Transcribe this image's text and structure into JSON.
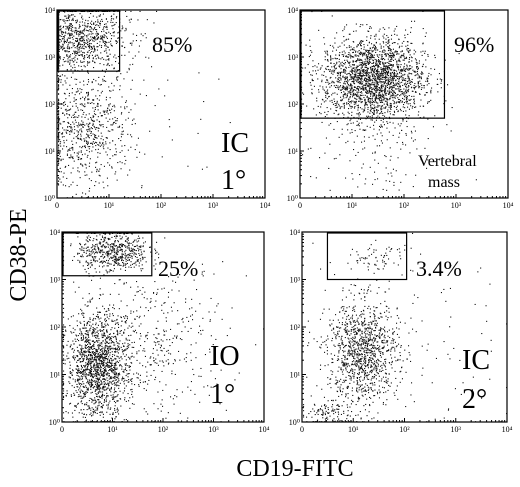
{
  "figure": {
    "ylabel": "CD38-PE",
    "xlabel": "CD19-FITC"
  },
  "chart_data": [
    {
      "type": "scatter",
      "panel": "top-left",
      "xscale": "log",
      "yscale": "log",
      "xlim": [
        1,
        10000
      ],
      "ylim": [
        1,
        10000
      ],
      "x_ticks": [
        "0",
        "10¹",
        "10²",
        "10³",
        "10⁴"
      ],
      "y_ticks": [
        "10⁰",
        "10¹",
        "10²",
        "10³",
        "10⁴"
      ],
      "gate": {
        "x": [
          1,
          16
        ],
        "y": [
          500,
          10000
        ]
      },
      "gate_percent": "85%",
      "annotation_lines": [
        "IC",
        "1°"
      ],
      "clusters": [
        {
          "cx": 2.5,
          "cy": 2500,
          "sx": 0.5,
          "sy": 0.35,
          "n": 900
        },
        {
          "cx": 3.5,
          "cy": 30,
          "sx": 0.45,
          "sy": 0.6,
          "n": 700
        },
        {
          "cx": 30,
          "cy": 100,
          "sx": 1.0,
          "sy": 1.2,
          "n": 60
        }
      ]
    },
    {
      "type": "scatter",
      "panel": "top-right",
      "xscale": "log",
      "yscale": "log",
      "xlim": [
        1,
        10000
      ],
      "ylim": [
        1,
        10000
      ],
      "x_ticks": [
        "0",
        "10¹",
        "10²",
        "10³",
        "10⁴"
      ],
      "y_ticks": [
        "10⁰",
        "10¹",
        "10²",
        "10³",
        "10⁴"
      ],
      "gate": {
        "x": [
          1,
          600
        ],
        "y": [
          50,
          10000
        ]
      },
      "gate_percent": "96%",
      "annotation_lines": [
        "Vertebral",
        "mass"
      ],
      "clusters": [
        {
          "cx": 25,
          "cy": 350,
          "sx": 0.5,
          "sy": 0.45,
          "n": 2200
        },
        {
          "cx": 25,
          "cy": 10,
          "sx": 0.6,
          "sy": 0.6,
          "n": 140
        }
      ]
    },
    {
      "type": "scatter",
      "panel": "bottom-left",
      "xscale": "log",
      "yscale": "log",
      "xlim": [
        1,
        10000
      ],
      "ylim": [
        1,
        10000
      ],
      "x_ticks": [
        "0",
        "10¹",
        "10²",
        "10³",
        "10⁴"
      ],
      "y_ticks": [
        "10⁰",
        "10¹",
        "10²",
        "10³",
        "10⁴"
      ],
      "gate": {
        "x": [
          1,
          60
        ],
        "y": [
          1200,
          10000
        ]
      },
      "gate_percent": "25%",
      "annotation_lines": [
        "IO",
        "1°"
      ],
      "clusters": [
        {
          "cx": 10,
          "cy": 4000,
          "sx": 0.35,
          "sy": 0.22,
          "n": 550
        },
        {
          "cx": 5,
          "cy": 15,
          "sx": 0.3,
          "sy": 0.55,
          "n": 1500
        },
        {
          "cx": 60,
          "cy": 50,
          "sx": 0.75,
          "sy": 0.8,
          "n": 450
        }
      ]
    },
    {
      "type": "scatter",
      "panel": "bottom-right",
      "xscale": "log",
      "yscale": "log",
      "xlim": [
        1,
        10000
      ],
      "ylim": [
        1,
        10000
      ],
      "x_ticks": [
        "0",
        "10¹",
        "10²",
        "10³",
        "10⁴"
      ],
      "y_ticks": [
        "10⁰",
        "10¹",
        "10²",
        "10³",
        "10⁴"
      ],
      "gate": {
        "x": [
          3,
          110
        ],
        "y": [
          1000,
          10000
        ]
      },
      "gate_percent": "3.4%",
      "annotation_lines": [
        "IC",
        "2°"
      ],
      "clusters": [
        {
          "cx": 15,
          "cy": 30,
          "sx": 0.35,
          "sy": 0.55,
          "n": 1100
        },
        {
          "cx": 30,
          "cy": 3000,
          "sx": 0.35,
          "sy": 0.15,
          "n": 70
        },
        {
          "cx": 3,
          "cy": 1.5,
          "sx": 0.3,
          "sy": 0.15,
          "n": 120
        },
        {
          "cx": 200,
          "cy": 30,
          "sx": 1.0,
          "sy": 1.0,
          "n": 80
        }
      ]
    }
  ]
}
